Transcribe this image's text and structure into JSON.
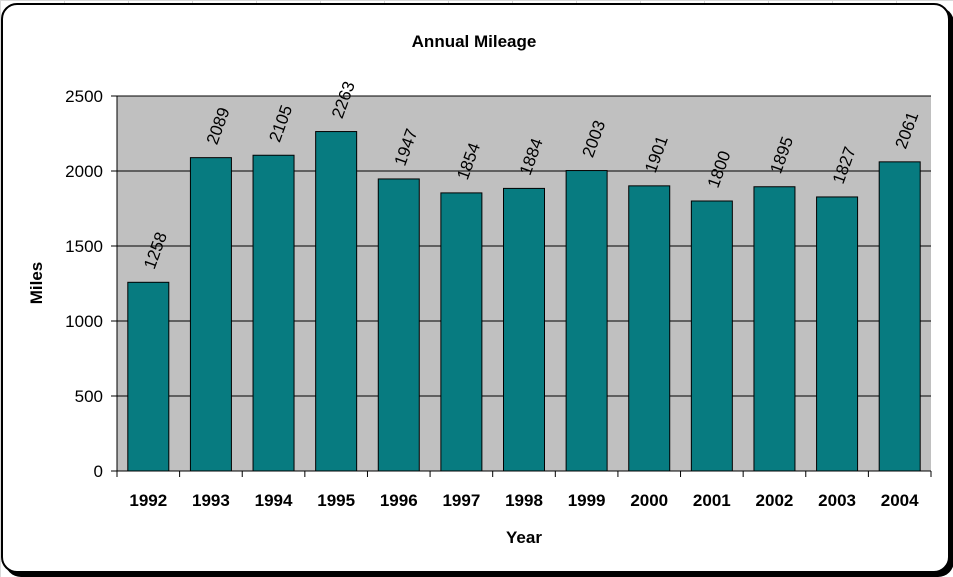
{
  "chart_data": {
    "type": "bar",
    "title": "Annual Mileage",
    "xlabel": "Year",
    "ylabel": "Miles",
    "categories": [
      "1992",
      "1993",
      "1994",
      "1995",
      "1996",
      "1997",
      "1998",
      "1999",
      "2000",
      "2001",
      "2002",
      "2003",
      "2004"
    ],
    "values": [
      1258,
      2089,
      2105,
      2263,
      1947,
      1854,
      1884,
      2003,
      1901,
      1800,
      1895,
      1827,
      2061
    ],
    "ylim": [
      0,
      2500
    ],
    "yticks": [
      0,
      500,
      1000,
      1500,
      2000,
      2500
    ],
    "grid": true,
    "legend": "none",
    "data_labels": true,
    "colors": {
      "bar": "#077B80",
      "plot_background": "#C0C0C0",
      "gridline": "#000000"
    }
  }
}
